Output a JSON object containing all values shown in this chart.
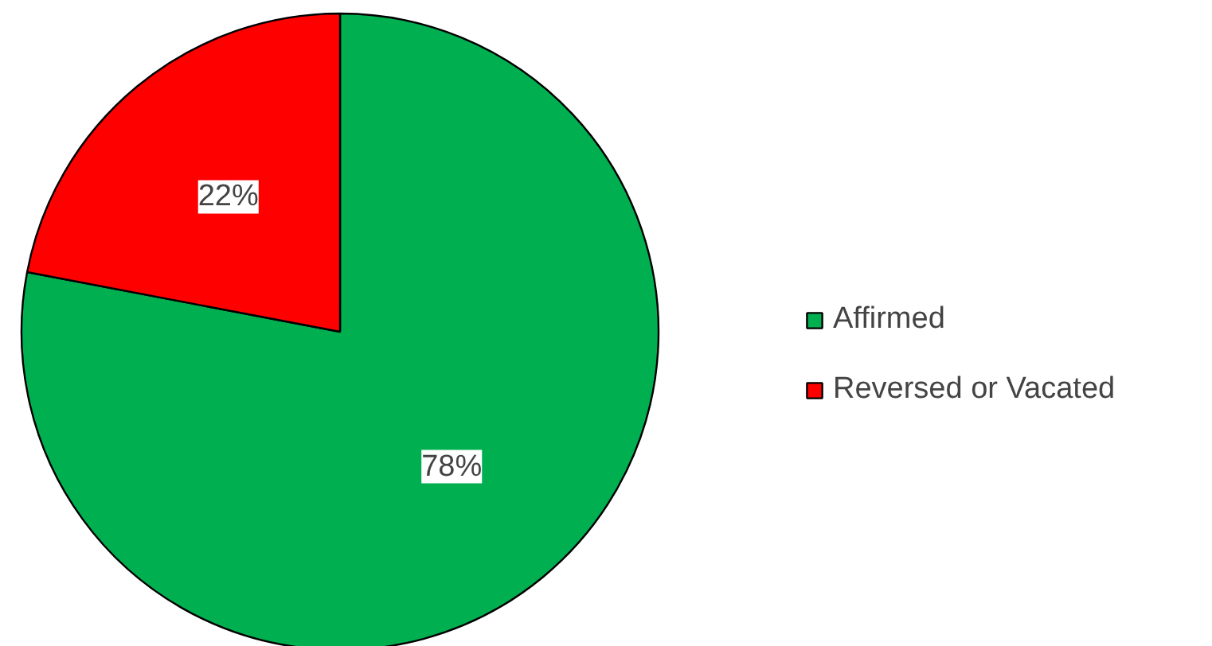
{
  "chart_data": {
    "type": "pie",
    "categories": [
      "Affirmed",
      "Reversed or Vacated"
    ],
    "values": [
      78,
      22
    ],
    "colors": [
      "#00b050",
      "#ff0000"
    ],
    "value_labels": [
      "78%",
      "22%"
    ],
    "legend": "right"
  }
}
